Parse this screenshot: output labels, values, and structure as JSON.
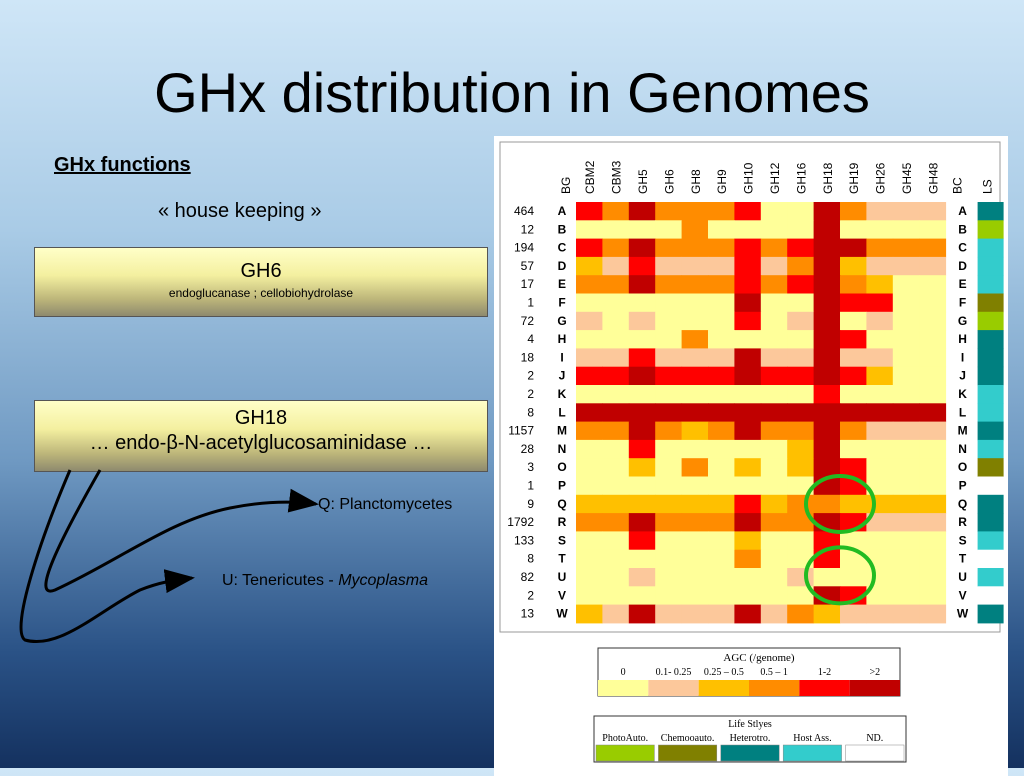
{
  "slide": {
    "title": "GHx distribution in Genomes",
    "functions_heading": "GHx functions",
    "housekeeping": "« house keeping »",
    "box_gh6": {
      "title": "GH6",
      "subtitle": "endoglucanase ; cellobiohydrolase"
    },
    "box_gh18": {
      "title": "GH18",
      "subtitle": "… endo-β-N-acetylglucosaminidase …"
    },
    "label_q": "Q: Planctomycetes",
    "label_u_prefix": "U: Tenericutes - ",
    "label_u_italic": "Mycoplasma"
  },
  "figure": {
    "bg_header": "BG",
    "columns": [
      "CBM2",
      "CBM3",
      "GH5",
      "GH6",
      "GH8",
      "GH9",
      "GH10",
      "GH12",
      "GH16",
      "GH18",
      "GH19",
      "GH26",
      "GH45",
      "GH48"
    ],
    "bc_header": "BC",
    "ls_header": "LS",
    "counts": [
      "464",
      "12",
      "194",
      "57",
      "17",
      "1",
      "72",
      "4",
      "18",
      "2",
      "2",
      "8",
      "1157",
      "28",
      "3",
      "1",
      "9",
      "1792",
      "133",
      "8",
      "82",
      "2",
      "13"
    ],
    "groups": [
      "A",
      "B",
      "C",
      "D",
      "E",
      "F",
      "G",
      "H",
      "I",
      "J",
      "K",
      "L",
      "M",
      "N",
      "O",
      "P",
      "Q",
      "R",
      "S",
      "T",
      "U",
      "V",
      "W"
    ],
    "colors": {
      "0": "#ffff99",
      "1": "#fcc89b",
      "2": "#ffc000",
      "3": "#ff8c00",
      "4": "#ff0000",
      "5": "#c00000"
    },
    "ls_colors": {
      "P": "#99cc00",
      "C": "#808000",
      "H": "#008080",
      "A": "#33cccc",
      "N": "#ffffff"
    },
    "matrix": [
      [
        4,
        3,
        5,
        3,
        3,
        3,
        4,
        0,
        0,
        5,
        3,
        1,
        1,
        1
      ],
      [
        0,
        0,
        0,
        0,
        3,
        0,
        0,
        0,
        0,
        5,
        0,
        0,
        0,
        0
      ],
      [
        4,
        3,
        5,
        3,
        3,
        3,
        4,
        3,
        4,
        5,
        5,
        3,
        3,
        3
      ],
      [
        2,
        1,
        4,
        1,
        1,
        1,
        4,
        1,
        3,
        5,
        2,
        1,
        1,
        1
      ],
      [
        3,
        3,
        5,
        3,
        3,
        3,
        4,
        3,
        4,
        5,
        3,
        2,
        0,
        0
      ],
      [
        0,
        0,
        0,
        0,
        0,
        0,
        5,
        0,
        0,
        5,
        4,
        4,
        0,
        0
      ],
      [
        1,
        0,
        1,
        0,
        0,
        0,
        4,
        0,
        1,
        5,
        0,
        1,
        0,
        0
      ],
      [
        0,
        0,
        0,
        0,
        3,
        0,
        0,
        0,
        0,
        5,
        4,
        0,
        0,
        0
      ],
      [
        1,
        1,
        4,
        1,
        1,
        1,
        5,
        1,
        1,
        5,
        1,
        1,
        0,
        0
      ],
      [
        4,
        4,
        5,
        4,
        4,
        4,
        5,
        4,
        4,
        5,
        4,
        2,
        0,
        0
      ],
      [
        0,
        0,
        0,
        0,
        0,
        0,
        0,
        0,
        0,
        4,
        0,
        0,
        0,
        0
      ],
      [
        5,
        5,
        5,
        5,
        5,
        5,
        5,
        5,
        5,
        5,
        5,
        5,
        5,
        5
      ],
      [
        3,
        3,
        5,
        3,
        2,
        3,
        5,
        3,
        3,
        5,
        3,
        1,
        1,
        1
      ],
      [
        0,
        0,
        4,
        0,
        0,
        0,
        0,
        0,
        2,
        5,
        0,
        0,
        0,
        0
      ],
      [
        0,
        0,
        2,
        0,
        3,
        0,
        2,
        0,
        2,
        5,
        4,
        0,
        0,
        0
      ],
      [
        0,
        0,
        0,
        0,
        0,
        0,
        0,
        0,
        0,
        5,
        4,
        0,
        0,
        0
      ],
      [
        2,
        2,
        2,
        2,
        2,
        2,
        4,
        2,
        3,
        3,
        2,
        2,
        2,
        2
      ],
      [
        3,
        3,
        5,
        3,
        3,
        3,
        5,
        3,
        3,
        5,
        4,
        1,
        1,
        1
      ],
      [
        0,
        0,
        4,
        0,
        0,
        0,
        2,
        0,
        0,
        4,
        0,
        0,
        0,
        0
      ],
      [
        0,
        0,
        0,
        0,
        0,
        0,
        3,
        0,
        0,
        4,
        0,
        0,
        0,
        0
      ],
      [
        0,
        0,
        1,
        0,
        0,
        0,
        0,
        0,
        1,
        0,
        0,
        0,
        0,
        0
      ],
      [
        0,
        0,
        0,
        0,
        0,
        0,
        0,
        0,
        0,
        5,
        4,
        0,
        0,
        0
      ],
      [
        2,
        1,
        5,
        1,
        1,
        1,
        5,
        1,
        3,
        2,
        1,
        1,
        1,
        1
      ]
    ],
    "ls": [
      "H",
      "P",
      "A",
      "A",
      "A",
      "C",
      "P",
      "H",
      "H",
      "H",
      "A",
      "A",
      "H",
      "A",
      "C",
      "N",
      "H",
      "H",
      "A",
      "N",
      "A",
      "N",
      "H"
    ],
    "agc_legend": {
      "title": "AGC (/genome)",
      "labels": [
        "0",
        "0.1- 0.25",
        "0.25 – 0.5",
        "0.5 – 1",
        "1-2",
        ">2"
      ]
    },
    "ls_legend": {
      "title": "Life Stlyes",
      "labels": [
        "PhotoAuto.",
        "Chemooauto.",
        "Heterotro.",
        "Host Ass.",
        "ND."
      ],
      "colors": [
        "#99cc00",
        "#808000",
        "#008080",
        "#33cccc",
        "#ffffff"
      ]
    }
  }
}
